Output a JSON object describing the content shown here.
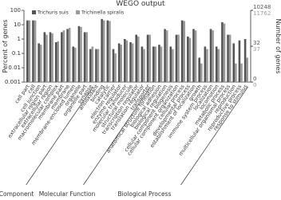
{
  "chart_data": {
    "type": "bar",
    "title": "WEGO output",
    "ylabel": "Percent of genes",
    "y2label": "Number of genes",
    "log_scale": true,
    "ylim": [
      0.001,
      100
    ],
    "yticks": [
      0.001,
      0.01,
      0.1,
      1,
      10,
      100
    ],
    "categories": [
      "cell part",
      "cell",
      "cell junction",
      "extracellular region part",
      "extracellular region",
      "macromolecular complex",
      "membrane part",
      "membrane",
      "membrane-enclosed lumen",
      "organelle",
      "organelle part",
      "synapse",
      "antioxidant",
      "binding",
      "catalytic",
      "electron carrier",
      "enzyme regulator",
      "molecular transducer",
      "structural molecule",
      "transcription regulator",
      "translation regulator",
      "transporter",
      "anatomical structure formation",
      "biological adhesion",
      "biological regulation",
      "cellular component biogenesis",
      "cellular component organization",
      "cellular process",
      "developmental process",
      "establishment of localization",
      "growth",
      "immune system process",
      "localization",
      "locomotion",
      "metabolic process",
      "multicellular organismal process",
      "reproduction",
      "reproductive process",
      "response to stimulus"
    ],
    "groups": [
      {
        "name": "Cellular Component",
        "count": 12
      },
      {
        "name": "Molecular Function",
        "count": 10
      },
      {
        "name": "Biological Process",
        "count": 17
      }
    ],
    "series": [
      {
        "name": "Trichuris suis",
        "color": "#555555",
        "y2ticks": [
          0,
          32,
          10248
        ],
        "values": [
          20,
          20,
          0.5,
          3,
          3,
          0.6,
          3,
          5,
          0.3,
          8,
          3,
          0.2,
          0.2,
          25,
          20,
          0.2,
          0.5,
          1,
          0.6,
          2,
          0.3,
          2,
          0.3,
          0.4,
          5,
          0.3,
          2,
          20,
          1.5,
          5,
          0.05,
          0.3,
          5,
          0.3,
          15,
          2,
          0.5,
          0.8,
          1
        ]
      },
      {
        "name": "Trichinella spiralis",
        "color": "#9a9a9a",
        "y2ticks": [
          0,
          37,
          11762
        ],
        "values": [
          20,
          20,
          0.4,
          2,
          2.5,
          0.7,
          4,
          6,
          0.25,
          7,
          3,
          0.3,
          0.2,
          20,
          18,
          0.1,
          0.4,
          0.8,
          0.5,
          1.5,
          0.2,
          2,
          0.3,
          0.3,
          4,
          0.2,
          2,
          18,
          1.2,
          4,
          0.02,
          0.2,
          4,
          0.2,
          12,
          2,
          0.02,
          0.02,
          0.05
        ]
      }
    ]
  }
}
